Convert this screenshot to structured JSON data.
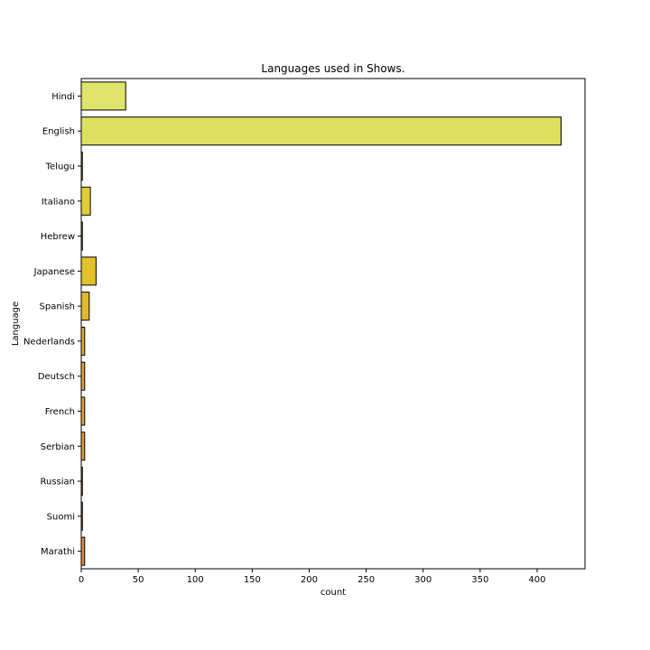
{
  "chart_data": {
    "type": "bar",
    "orientation": "horizontal",
    "title": "Languages used in Shows.",
    "xlabel": "count",
    "ylabel": "Language",
    "xlim": [
      0,
      442
    ],
    "xticks": [
      0,
      50,
      100,
      150,
      200,
      250,
      300,
      350,
      400
    ],
    "grid": false,
    "categories": [
      "Hindi",
      "English",
      "Telugu",
      "Italiano",
      "Hebrew",
      "Japanese",
      "Spanish",
      "Nederlands",
      "Deutsch",
      "French",
      "Serbian",
      "Russian",
      "Suomi",
      "Marathi"
    ],
    "values": [
      39,
      421,
      1,
      8,
      1,
      13,
      7,
      3,
      3,
      3,
      3,
      1,
      1,
      3
    ],
    "colors": [
      "#dfe46a",
      "#dedf5e",
      "#d9d94c",
      "#e0ce38",
      "#dcc72f",
      "#e2c12a",
      "#e1b830",
      "#dfae30",
      "#e1a634",
      "#e3a23a",
      "#e29a3c",
      "#e2943f",
      "#e28e42",
      "#e08845"
    ]
  }
}
